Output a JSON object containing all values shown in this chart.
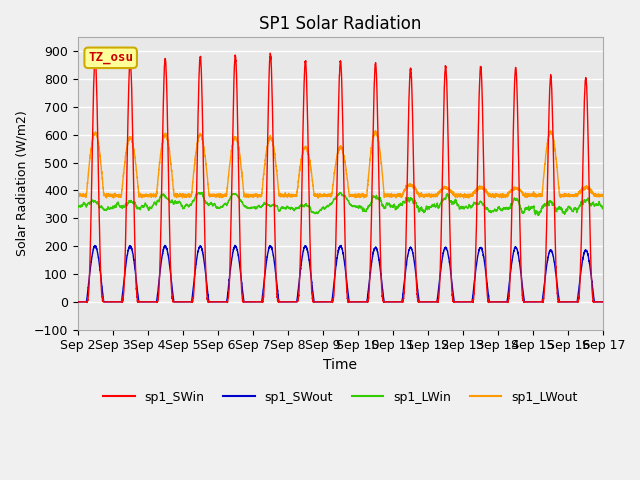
{
  "title": "SP1 Solar Radiation",
  "xlabel": "Time",
  "ylabel": "Solar Radiation (W/m2)",
  "ylim": [
    -100,
    950
  ],
  "xlim": [
    0,
    15
  ],
  "bg_color": "#e8e8e8",
  "fig_color": "#f0f0f0",
  "grid_color": "white",
  "tz_label": "TZ_osu",
  "tz_bg": "#ffff99",
  "tz_border": "#ccaa00",
  "colors": {
    "SWin": "#ff0000",
    "SWout": "#0000cc",
    "LWin": "#33cc00",
    "LWout": "#ff9900"
  },
  "legend_labels": [
    "sp1_SWin",
    "sp1_SWout",
    "sp1_LWin",
    "sp1_LWout"
  ],
  "xtick_labels": [
    "Sep 2",
    "Sep 3",
    "Sep 4",
    "Sep 5",
    "Sep 6",
    "Sep 7",
    "Sep 8",
    "Sep 9",
    "Sep 10",
    "Sep 11",
    "Sep 12",
    "Sep 13",
    "Sep 14",
    "Sep 15",
    "Sep 16",
    "Sep 17"
  ],
  "n_days": 15,
  "SWin_peaks": [
    880,
    870,
    875,
    880,
    885,
    890,
    865,
    865,
    855,
    840,
    845,
    845,
    840,
    810,
    805
  ],
  "SWout_peaks": [
    200,
    200,
    200,
    200,
    200,
    200,
    200,
    200,
    195,
    195,
    195,
    195,
    195,
    185,
    185
  ],
  "LWout_peaks": [
    605,
    590,
    600,
    600,
    590,
    590,
    555,
    555,
    610,
    420,
    410,
    410,
    408,
    610,
    410
  ],
  "LWout_night": 382,
  "LWin_base": 340,
  "LWin_amp": 40,
  "samples_per_day": 288
}
